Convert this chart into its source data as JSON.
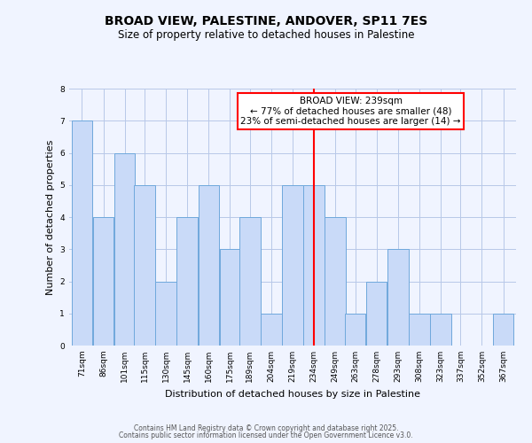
{
  "title": "BROAD VIEW, PALESTINE, ANDOVER, SP11 7ES",
  "subtitle": "Size of property relative to detached houses in Palestine",
  "xlabel": "Distribution of detached houses by size in Palestine",
  "ylabel": "Number of detached properties",
  "bins": [
    71,
    86,
    101,
    115,
    130,
    145,
    160,
    175,
    189,
    204,
    219,
    234,
    249,
    263,
    278,
    293,
    308,
    323,
    337,
    352,
    367
  ],
  "heights": [
    7,
    4,
    6,
    5,
    2,
    4,
    5,
    3,
    4,
    1,
    5,
    5,
    4,
    1,
    2,
    3,
    1,
    1,
    0,
    0,
    1
  ],
  "bar_color": "#c9daf8",
  "bar_edge_color": "#6fa8dc",
  "background_color": "#f0f4ff",
  "grid_color": "#b8c8e8",
  "red_line_x": 234,
  "annotation_title": "BROAD VIEW: 239sqm",
  "annotation_line1": "← 77% of detached houses are smaller (48)",
  "annotation_line2": "23% of semi-detached houses are larger (14) →",
  "footer1": "Contains HM Land Registry data © Crown copyright and database right 2025.",
  "footer2": "Contains public sector information licensed under the Open Government Licence v3.0.",
  "ylim": [
    0,
    8
  ],
  "yticks": [
    0,
    1,
    2,
    3,
    4,
    5,
    6,
    7,
    8
  ],
  "title_fontsize": 10,
  "subtitle_fontsize": 8.5,
  "ylabel_fontsize": 8,
  "xlabel_fontsize": 8,
  "tick_fontsize": 6.5,
  "footer_fontsize": 5.5,
  "annotation_fontsize": 7.5
}
